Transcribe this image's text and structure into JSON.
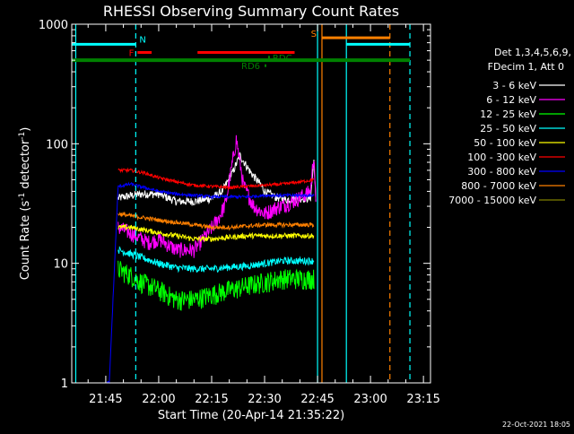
{
  "chart_data": {
    "type": "line",
    "title": "RHESSI Observing Summary Count Rates",
    "xlabel": "Start Time (20-Apr-14 21:35:22)",
    "ylabel_main": "Count Rate (s",
    "ylabel_sup1": "-1",
    "ylabel_mid": " detector",
    "ylabel_sup2": "-1",
    "ylabel_end": ")",
    "y_scale": "log",
    "ylim": [
      1,
      1000
    ],
    "xlim": [
      "21:35:22",
      "23:17:00"
    ],
    "x_ticks": [
      "21:45",
      "22:00",
      "22:15",
      "22:30",
      "22:45",
      "23:00",
      "23:15"
    ],
    "y_ticks": [
      "1",
      "10",
      "100",
      "1000"
    ],
    "legend_header": [
      "Det 1,3,4,5,6,9,",
      "FDecim 1, Att 0"
    ],
    "footer_date": "22-Oct-2021 18:05",
    "flag_labels": {
      "N": "N",
      "F": "F",
      "S": "S",
      "RD6": "RD6",
      "RDC": "RDC"
    },
    "vlines": [
      {
        "time": "21:36:30",
        "color": "#00ffff",
        "style": "solid"
      },
      {
        "time": "21:53:30",
        "color": "#00ffff",
        "style": "dashed"
      },
      {
        "time": "22:45:00",
        "color": "#00ffff",
        "style": "solid"
      },
      {
        "time": "22:46:15",
        "color": "#ff8000",
        "style": "solid"
      },
      {
        "time": "22:53:10",
        "color": "#00ffff",
        "style": "solid"
      },
      {
        "time": "23:05:30",
        "color": "#ff8000",
        "style": "dashed"
      },
      {
        "time": "23:11:10",
        "color": "#00ffff",
        "style": "dashed"
      }
    ],
    "flag_bars": [
      {
        "name": "night",
        "label_key": "N",
        "color": "#00ffff",
        "start": "21:35:22",
        "end": "21:53:30",
        "level": 680
      },
      {
        "name": "night-2",
        "label_key": "",
        "color": "#00ffff",
        "start": "22:53:10",
        "end": "23:11:10",
        "level": 680
      },
      {
        "name": "flare",
        "label_key": "F",
        "color": "#ff0000",
        "start": "21:54:00",
        "end": "21:58:00",
        "level": 580
      },
      {
        "name": "flare-2",
        "label_key": "",
        "color": "#ff0000",
        "start": "22:11:00",
        "end": "22:38:30",
        "level": 580
      },
      {
        "name": "saa",
        "label_key": "S",
        "color": "#ff8000",
        "start": "22:46:15",
        "end": "23:05:30",
        "level": 770
      },
      {
        "name": "decimation",
        "label_key": "",
        "color": "#008000",
        "start": "21:35:22",
        "end": "23:11:10",
        "level": 500
      },
      {
        "name": "rdc",
        "label_key": "RDC",
        "color": "#008000",
        "start": "22:31:00",
        "end": "22:31:30",
        "level": 530
      },
      {
        "name": "rd6",
        "label_key": "RD6",
        "color": "#008000",
        "start": "22:30:00",
        "end": "22:30:30",
        "level": 450
      }
    ],
    "series": [
      {
        "name": "3 - 6 keV",
        "color": "#ffffff",
        "x": [
          "21:48:30",
          "21:50:00",
          "21:55:00",
          "22:00:00",
          "22:05:00",
          "22:10:00",
          "22:15:00",
          "22:18:00",
          "22:21:00",
          "22:23:00",
          "22:26:00",
          "22:29:00",
          "22:30:00",
          "22:33:00",
          "22:36:00",
          "22:40:00",
          "22:43:00",
          "22:44:00",
          "22:44:30"
        ],
        "y": [
          35,
          36,
          38,
          38,
          33,
          33,
          35,
          40,
          58,
          80,
          58,
          45,
          40,
          36,
          34,
          35,
          35,
          75,
          32
        ],
        "noise": 0.08
      },
      {
        "name": "6 - 12 keV",
        "color": "#ff00ff",
        "x": [
          "21:48:30",
          "21:52:00",
          "21:57:00",
          "22:00:00",
          "22:05:00",
          "22:10:00",
          "22:14:00",
          "22:17:00",
          "22:19:00",
          "22:22:00",
          "22:24:00",
          "22:27:00",
          "22:30:00",
          "22:33:00",
          "22:38:00",
          "22:43:00",
          "22:44:00",
          "22:44:30"
        ],
        "y": [
          20,
          18,
          15,
          16,
          13,
          13,
          18,
          24,
          32,
          110,
          45,
          30,
          26,
          29,
          33,
          40,
          85,
          30
        ],
        "noise": 0.15
      },
      {
        "name": "12 - 25 keV",
        "color": "#00ff00",
        "x": [
          "21:48:30",
          "21:52:00",
          "21:55:00",
          "22:00:00",
          "22:05:00",
          "22:10:00",
          "22:15:00",
          "22:20:00",
          "22:25:00",
          "22:30:00",
          "22:35:00",
          "22:40:00",
          "22:44:00"
        ],
        "y": [
          9,
          8,
          7,
          6,
          5,
          5,
          5.5,
          6,
          6.5,
          7,
          7.5,
          7.5,
          7.5
        ],
        "noise": 0.2
      },
      {
        "name": "25 - 50 keV",
        "color": "#00ffff",
        "x": [
          "21:48:30",
          "21:52:00",
          "21:56:00",
          "22:00:00",
          "22:05:00",
          "22:10:00",
          "22:15:00",
          "22:20:00",
          "22:25:00",
          "22:30:00",
          "22:35:00",
          "22:40:00",
          "22:44:00"
        ],
        "y": [
          13,
          12,
          11,
          10,
          9.2,
          9,
          9,
          9.3,
          9.5,
          10,
          10.5,
          10.5,
          10.5
        ],
        "noise": 0.07
      },
      {
        "name": "50 - 100 keV",
        "color": "#ffff00",
        "x": [
          "21:48:30",
          "21:52:00",
          "21:56:00",
          "22:00:00",
          "22:05:00",
          "22:10:00",
          "22:15:00",
          "22:20:00",
          "22:25:00",
          "22:30:00",
          "22:35:00",
          "22:40:00",
          "22:44:00"
        ],
        "y": [
          20,
          20,
          19,
          18,
          17,
          16,
          16,
          16.5,
          17,
          17,
          17,
          17,
          17
        ],
        "noise": 0.05
      },
      {
        "name": "100 - 300 keV",
        "color": "#ff0000",
        "x": [
          "21:48:30",
          "21:52:00",
          "21:56:00",
          "22:00:00",
          "22:05:00",
          "22:10:00",
          "22:15:00",
          "22:20:00",
          "22:25:00",
          "22:30:00",
          "22:35:00",
          "22:40:00",
          "22:44:00"
        ],
        "y": [
          60,
          60,
          57,
          52,
          48,
          45,
          44,
          43,
          44,
          45,
          46,
          48,
          50
        ],
        "noise": 0.03
      },
      {
        "name": "300 - 800 keV",
        "color": "#0000ff",
        "x": [
          "21:45:20",
          "21:46:00",
          "21:48:30",
          "21:52:00",
          "21:56:00",
          "22:00:00",
          "22:05:00",
          "22:10:00",
          "22:15:00",
          "22:20:00",
          "22:25:00",
          "22:30:00",
          "22:35:00",
          "22:40:00",
          "22:44:00"
        ],
        "y": [
          1,
          1,
          44,
          46,
          43,
          40,
          38,
          37,
          36,
          36,
          36,
          37,
          37,
          37,
          37
        ],
        "noise": 0.03
      },
      {
        "name": "800 - 7000 keV",
        "color": "#ff8000",
        "x": [
          "21:48:30",
          "21:52:00",
          "21:56:00",
          "22:00:00",
          "22:05:00",
          "22:10:00",
          "22:15:00",
          "22:20:00",
          "22:25:00",
          "22:30:00",
          "22:35:00",
          "22:40:00",
          "22:44:00"
        ],
        "y": [
          26,
          25,
          24,
          23,
          22,
          21,
          20,
          20,
          20.5,
          21,
          21,
          21,
          21
        ],
        "noise": 0.04
      },
      {
        "name": "7000 - 15000 keV",
        "color": "#808000",
        "x": [],
        "y": [],
        "noise": 0
      }
    ]
  }
}
